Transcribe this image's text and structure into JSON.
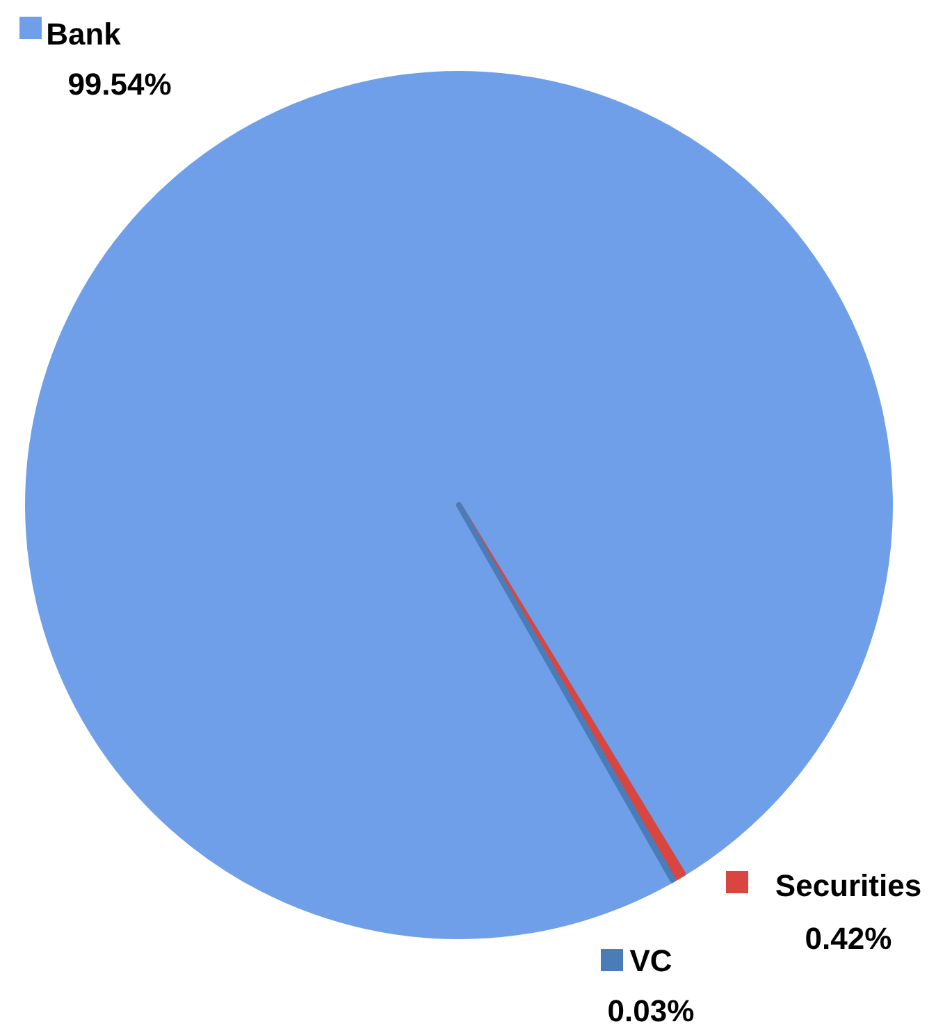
{
  "chart_data": {
    "type": "pie",
    "categories": [
      "Bank",
      "Securities",
      "VC"
    ],
    "values": [
      99.54,
      0.42,
      0.03
    ],
    "colors": [
      "#6f9fe8",
      "#d9453f",
      "#4a7db8"
    ],
    "value_labels": [
      "99.54%",
      "0.42%",
      "0.03%"
    ],
    "legend": "top left"
  }
}
